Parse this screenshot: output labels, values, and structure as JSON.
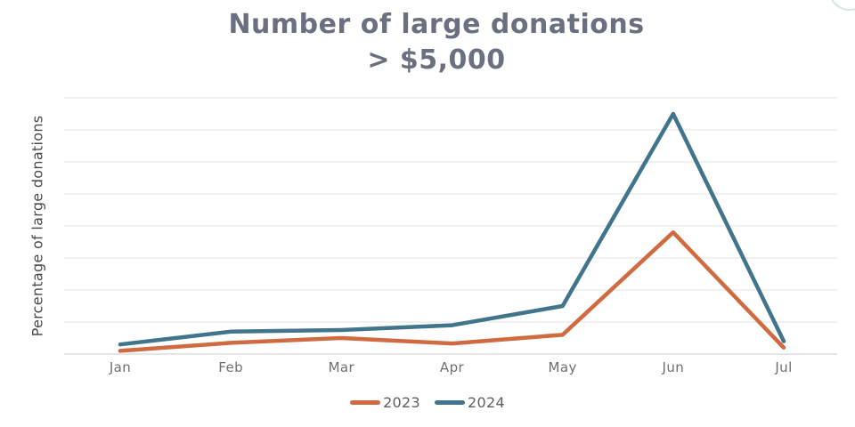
{
  "title": {
    "line1": "Number of large donations",
    "line2": "> $5,000"
  },
  "y_axis": {
    "label": "Percentage of large donations"
  },
  "chart_data": {
    "type": "line",
    "title": "Number of large donations > $5,000",
    "xlabel": "",
    "ylabel": "Percentage of large donations",
    "categories": [
      "Jan",
      "Feb",
      "Mar",
      "Apr",
      "May",
      "Jun",
      "Jul"
    ],
    "series": [
      {
        "name": "2023",
        "color": "#d06a40",
        "values": [
          0.1,
          0.35,
          0.5,
          0.33,
          0.6,
          3.8,
          0.2
        ]
      },
      {
        "name": "2024",
        "color": "#40758c",
        "values": [
          0.3,
          0.7,
          0.75,
          0.9,
          1.5,
          7.5,
          0.4
        ]
      }
    ],
    "ylim": [
      0,
      8
    ],
    "y_tick_labels_visible": false,
    "grid": "horizontal-only",
    "gridline_count": 9,
    "legend_position": "bottom",
    "line_width": 4.5,
    "colors": {
      "gridline": "#e3e3e3",
      "axis_line": "#cccccc",
      "title_text": "#6a7080",
      "axis_text": "#6f6f6f"
    }
  }
}
